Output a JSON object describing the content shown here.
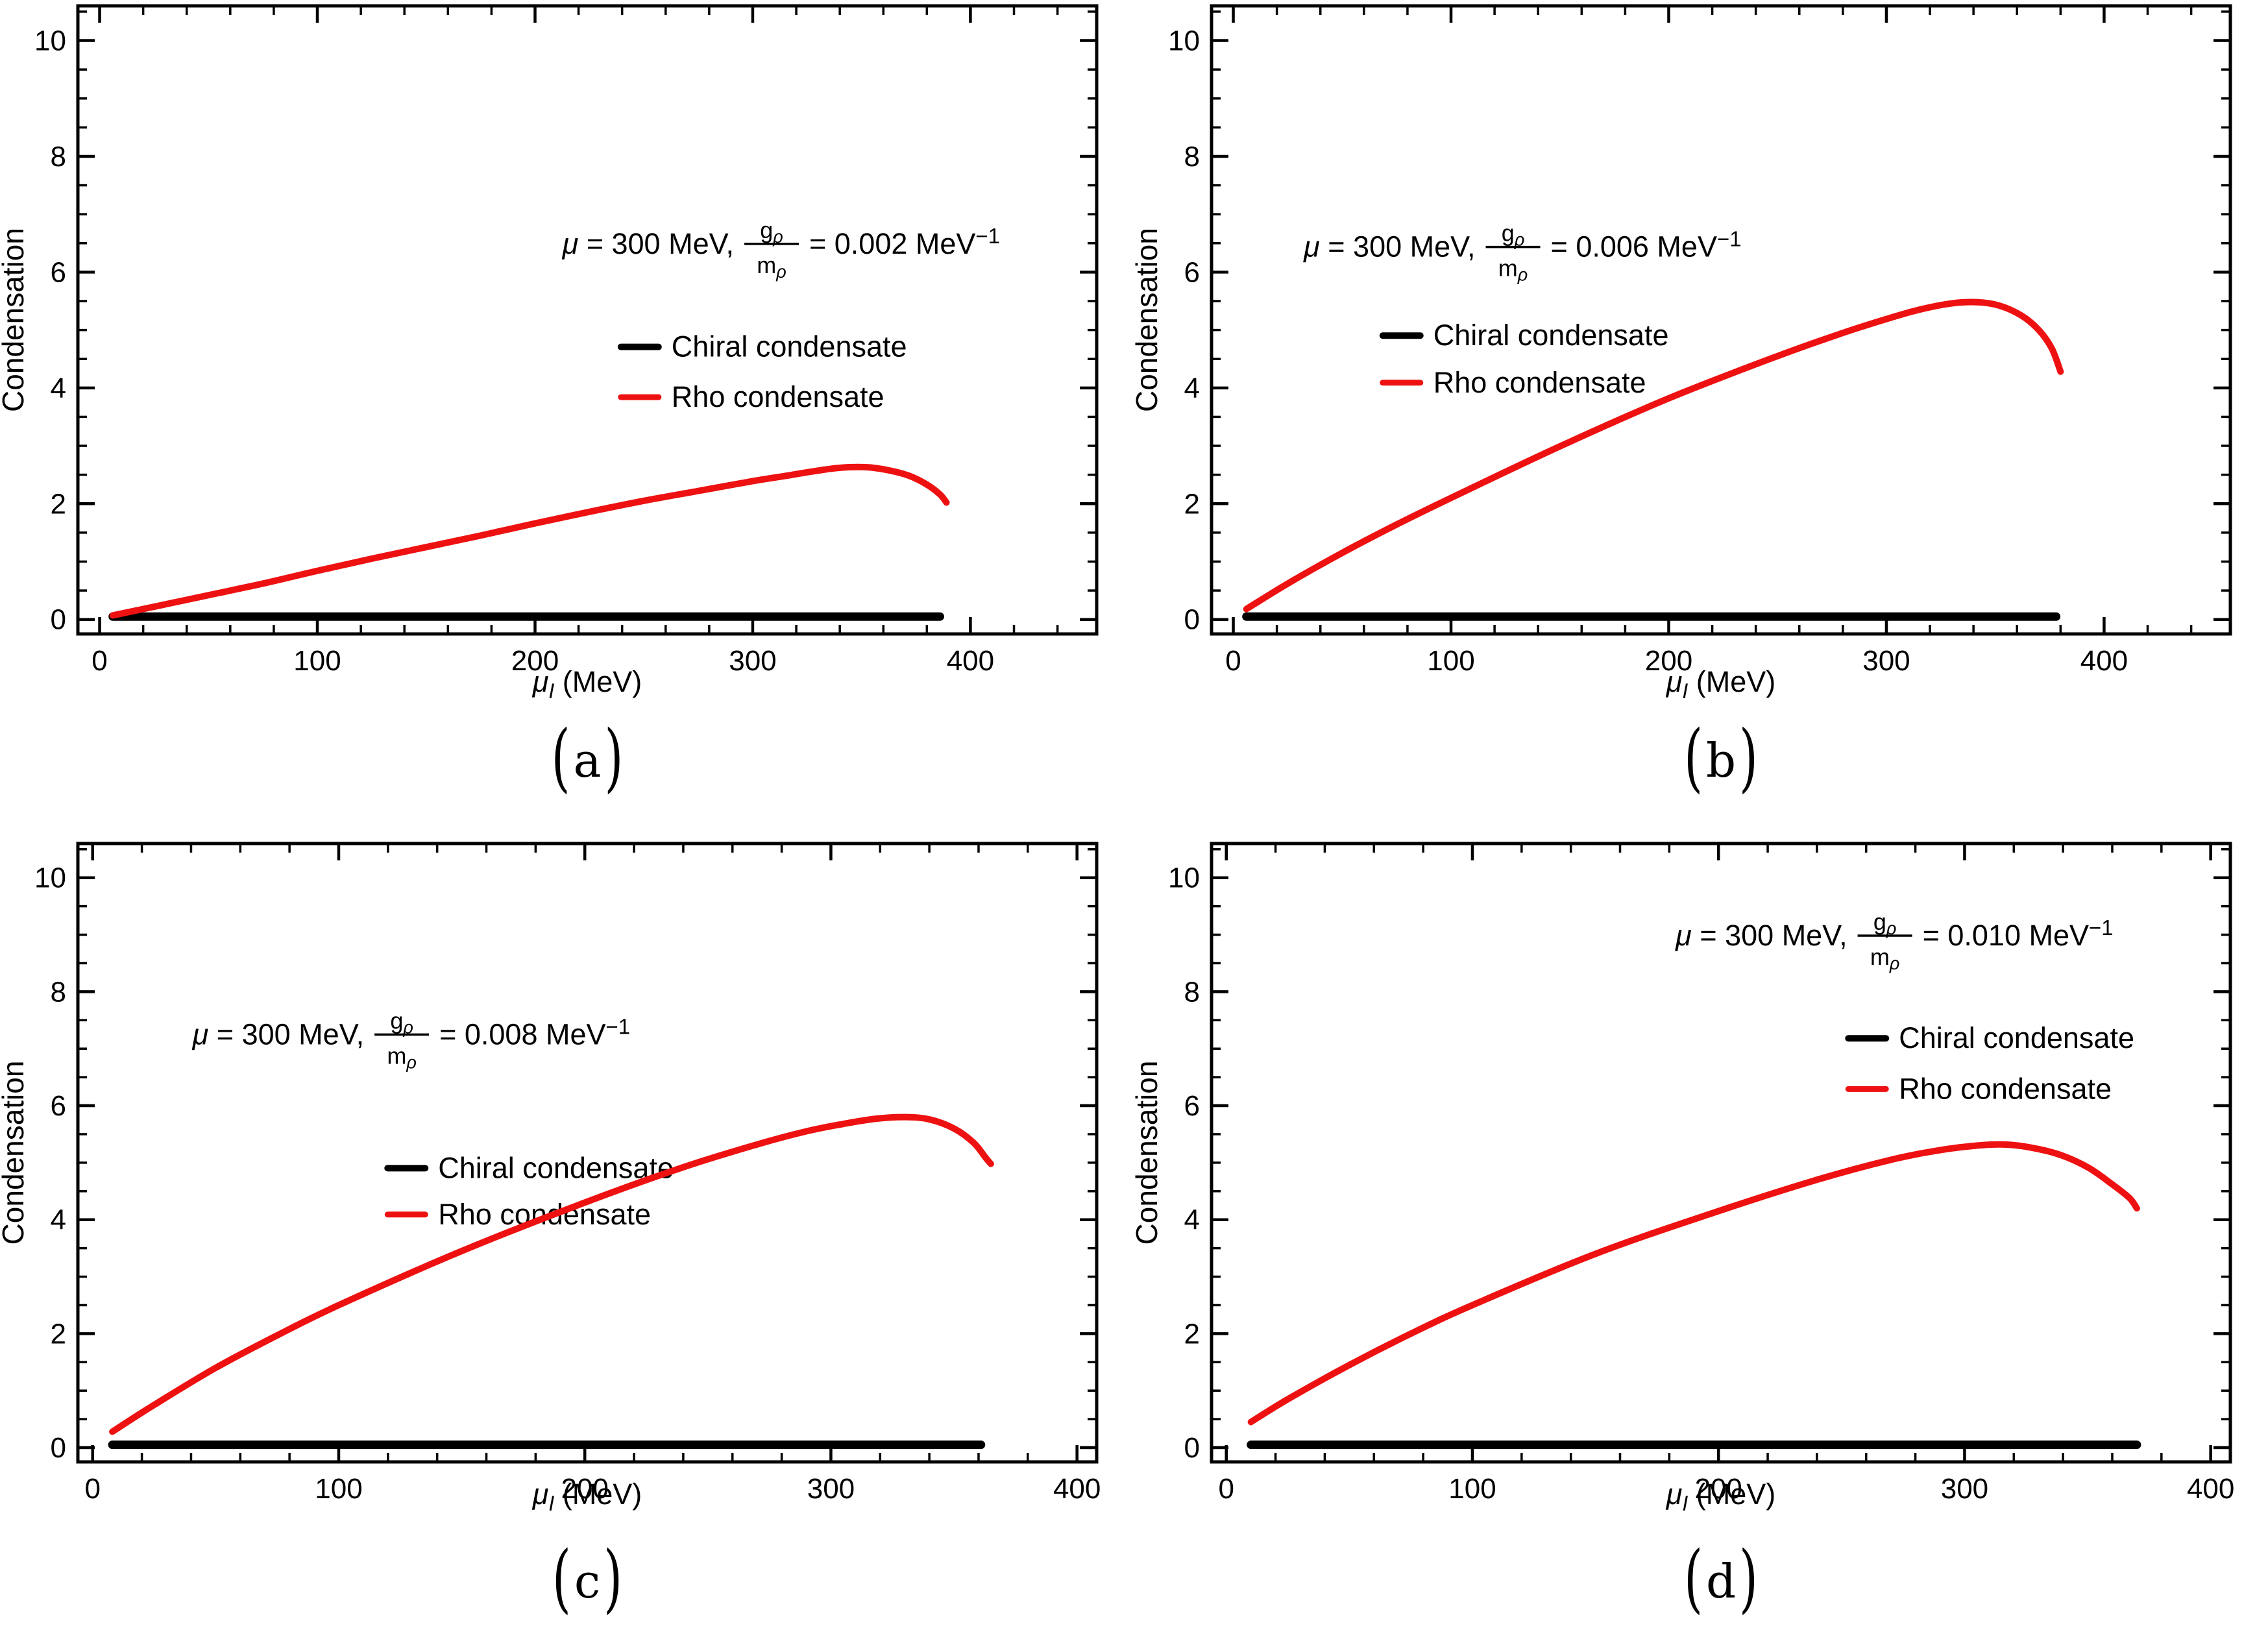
{
  "figure": {
    "background": "#ffffff",
    "paren_open": "(",
    "paren_close": ")",
    "colors": {
      "chiral": "#000000",
      "rho": "#ee1111",
      "frame": "#000000"
    },
    "axis": {
      "ylabel": "Condensation",
      "xlabel": {
        "base": "μ",
        "sub": "I",
        "rest": " (MeV)"
      },
      "x_major_ticks": [
        0,
        100,
        200,
        300,
        400
      ],
      "y_major_ticks": [
        0,
        2,
        4,
        6,
        8,
        10
      ],
      "x_minor_step": 20,
      "y_minor_step": 0.5
    },
    "legend_items": [
      {
        "key": "chiral",
        "label": "Chiral condensate"
      },
      {
        "key": "rho",
        "label": "Rho condensate"
      }
    ]
  },
  "chart_data": [
    {
      "type": "line",
      "panel_label_letter": "a",
      "annotation": {
        "prefix_sym": "μ",
        "prefix_rest": " = 300 MeV,",
        "num_base": "g",
        "num_sub": "ρ",
        "den_base": "m",
        "den_sub": "ρ",
        "rhs": "= 0.002 MeV",
        "rhs_sup": "−1"
      },
      "xlim": [
        -10,
        458
      ],
      "ylim": [
        -0.25,
        10.6
      ],
      "xlabel_ticks": [
        0,
        100,
        200,
        300,
        400
      ],
      "ylabel_ticks": [
        0,
        2,
        4,
        6,
        8,
        10
      ],
      "series": [
        {
          "name": "Chiral condensate",
          "color_key": "chiral",
          "width": 13,
          "points": [
            [
              6,
              0.05
            ],
            [
              386,
              0.05
            ]
          ]
        },
        {
          "name": "Rho condensate",
          "color_key": "rho",
          "width": 10,
          "points": [
            [
              6,
              0.07
            ],
            [
              25,
              0.22
            ],
            [
              50,
              0.42
            ],
            [
              75,
              0.62
            ],
            [
              100,
              0.84
            ],
            [
              125,
              1.05
            ],
            [
              150,
              1.25
            ],
            [
              175,
              1.45
            ],
            [
              200,
              1.66
            ],
            [
              225,
              1.86
            ],
            [
              250,
              2.05
            ],
            [
              275,
              2.22
            ],
            [
              300,
              2.39
            ],
            [
              315,
              2.48
            ],
            [
              328,
              2.56
            ],
            [
              340,
              2.62
            ],
            [
              352,
              2.63
            ],
            [
              362,
              2.58
            ],
            [
              372,
              2.48
            ],
            [
              380,
              2.33
            ],
            [
              386,
              2.16
            ],
            [
              389,
              2.02
            ]
          ]
        }
      ],
      "layout": {
        "ann_cx": 0.69,
        "ann_cy": 0.38,
        "leg_x": 0.533,
        "leg_y1": 0.543,
        "leg_y2": 0.623
      }
    },
    {
      "type": "line",
      "panel_label_letter": "b",
      "annotation": {
        "prefix_sym": "μ",
        "prefix_rest": " = 300 MeV,",
        "num_base": "g",
        "num_sub": "ρ",
        "den_base": "m",
        "den_sub": "ρ",
        "rhs": "= 0.006 MeV",
        "rhs_sup": "−1"
      },
      "xlim": [
        -10,
        458
      ],
      "ylim": [
        -0.25,
        10.6
      ],
      "xlabel_ticks": [
        0,
        100,
        200,
        300,
        400
      ],
      "ylabel_ticks": [
        0,
        2,
        4,
        6,
        8,
        10
      ],
      "series": [
        {
          "name": "Chiral condensate",
          "color_key": "chiral",
          "width": 13,
          "points": [
            [
              6,
              0.05
            ],
            [
              378,
              0.05
            ]
          ]
        },
        {
          "name": "Rho condensate",
          "color_key": "rho",
          "width": 10,
          "points": [
            [
              6,
              0.18
            ],
            [
              25,
              0.62
            ],
            [
              50,
              1.15
            ],
            [
              75,
              1.64
            ],
            [
              100,
              2.1
            ],
            [
              150,
              2.99
            ],
            [
              200,
              3.82
            ],
            [
              250,
              4.55
            ],
            [
              280,
              4.95
            ],
            [
              300,
              5.19
            ],
            [
              315,
              5.35
            ],
            [
              330,
              5.46
            ],
            [
              342,
              5.48
            ],
            [
              352,
              5.42
            ],
            [
              362,
              5.25
            ],
            [
              370,
              5.0
            ],
            [
              376,
              4.68
            ],
            [
              380,
              4.28
            ]
          ]
        }
      ],
      "layout": {
        "ann_cx": 0.305,
        "ann_cy": 0.385,
        "leg_x": 0.168,
        "leg_y1": 0.525,
        "leg_y2": 0.6
      }
    },
    {
      "type": "line",
      "panel_label_letter": "c",
      "annotation": {
        "prefix_sym": "μ",
        "prefix_rest": " = 300 MeV,",
        "num_base": "g",
        "num_sub": "ρ",
        "den_base": "m",
        "den_sub": "ρ",
        "rhs": "= 0.008 MeV",
        "rhs_sup": "−1"
      },
      "xlim": [
        -6,
        408
      ],
      "ylim": [
        -0.25,
        10.6
      ],
      "xlabel_ticks": [
        0,
        100,
        200,
        300,
        400
      ],
      "ylabel_ticks": [
        0,
        2,
        4,
        6,
        8,
        10
      ],
      "series": [
        {
          "name": "Chiral condensate",
          "color_key": "chiral",
          "width": 13,
          "points": [
            [
              8,
              0.05
            ],
            [
              361,
              0.05
            ]
          ]
        },
        {
          "name": "Rho condensate",
          "color_key": "rho",
          "width": 10,
          "points": [
            [
              8,
              0.28
            ],
            [
              25,
              0.75
            ],
            [
              50,
              1.4
            ],
            [
              75,
              1.97
            ],
            [
              100,
              2.5
            ],
            [
              150,
              3.45
            ],
            [
              200,
              4.3
            ],
            [
              240,
              4.92
            ],
            [
              270,
              5.32
            ],
            [
              290,
              5.55
            ],
            [
              305,
              5.68
            ],
            [
              318,
              5.77
            ],
            [
              330,
              5.8
            ],
            [
              340,
              5.76
            ],
            [
              350,
              5.6
            ],
            [
              358,
              5.35
            ],
            [
              363,
              5.08
            ],
            [
              365,
              4.98
            ]
          ]
        }
      ],
      "layout": {
        "ann_cx": 0.327,
        "ann_cy": 0.31,
        "leg_x": 0.304,
        "leg_y1": 0.525,
        "leg_y2": 0.6
      }
    },
    {
      "type": "line",
      "panel_label_letter": "d",
      "annotation": {
        "prefix_sym": "μ",
        "prefix_rest": " = 300 MeV,",
        "num_base": "g",
        "num_sub": "ρ",
        "den_base": "m",
        "den_sub": "ρ",
        "rhs": "= 0.010 MeV",
        "rhs_sup": "−1"
      },
      "xlim": [
        -6,
        408
      ],
      "ylim": [
        -0.25,
        10.6
      ],
      "xlabel_ticks": [
        0,
        100,
        200,
        300,
        400
      ],
      "ylabel_ticks": [
        0,
        2,
        4,
        6,
        8,
        10
      ],
      "series": [
        {
          "name": "Chiral condensate",
          "color_key": "chiral",
          "width": 13,
          "points": [
            [
              10,
              0.05
            ],
            [
              370,
              0.05
            ]
          ]
        },
        {
          "name": "Rho condensate",
          "color_key": "rho",
          "width": 10,
          "points": [
            [
              10,
              0.45
            ],
            [
              25,
              0.85
            ],
            [
              50,
              1.45
            ],
            [
              75,
              2.0
            ],
            [
              100,
              2.5
            ],
            [
              150,
              3.4
            ],
            [
              200,
              4.15
            ],
            [
              240,
              4.7
            ],
            [
              270,
              5.05
            ],
            [
              290,
              5.22
            ],
            [
              305,
              5.3
            ],
            [
              315,
              5.32
            ],
            [
              325,
              5.28
            ],
            [
              338,
              5.15
            ],
            [
              350,
              4.92
            ],
            [
              360,
              4.62
            ],
            [
              367,
              4.38
            ],
            [
              370,
              4.2
            ]
          ]
        }
      ],
      "layout": {
        "ann_cx": 0.67,
        "ann_cy": 0.15,
        "leg_x": 0.625,
        "leg_y1": 0.315,
        "leg_y2": 0.397
      }
    }
  ]
}
